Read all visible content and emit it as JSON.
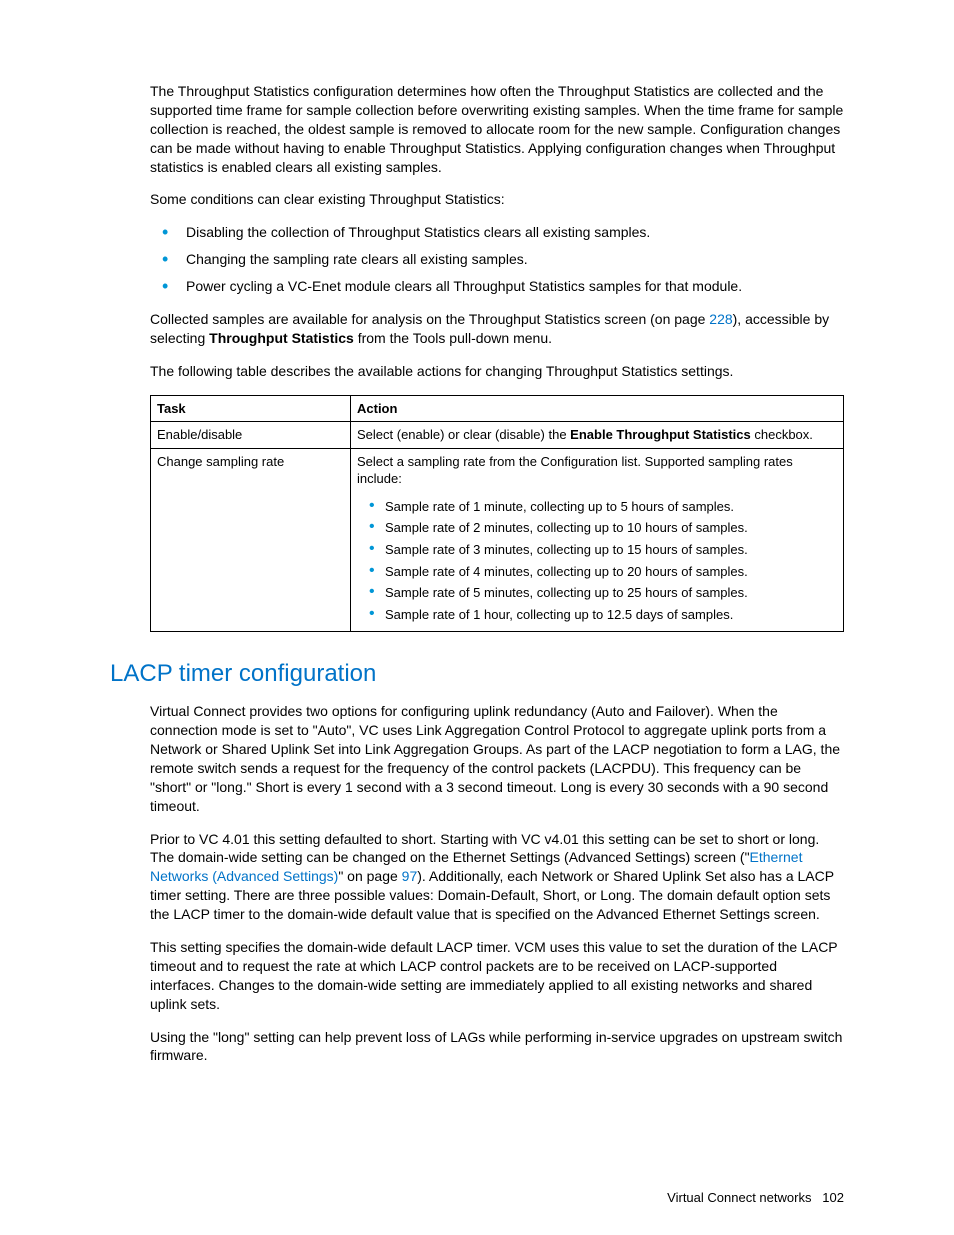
{
  "intro_para": {
    "p1_before_link": "The Throughput Statistics configuration determines how often the Throughput Statistics are collected and the supported time frame for sample collection before overwriting existing samples. When the time frame for sample collection is reached, the oldest sample is removed to allocate room for the new sample. Configuration changes can be made without having to enable Throughput Statistics. Applying configuration changes when Throughput statistics is enabled clears all existing samples.",
    "p2": "Some conditions can clear existing Throughput Statistics:"
  },
  "conditions": [
    "Disabling the collection of Throughput Statistics clears all existing samples.",
    "Changing the sampling rate clears all existing samples.",
    "Power cycling a VC-Enet module clears all Throughput Statistics samples for that module."
  ],
  "collected_para": {
    "before_link": "Collected samples are available for analysis on the Throughput Statistics screen (on page ",
    "link": "228",
    "after_link": "), accessible by selecting ",
    "bold": "Throughput Statistics",
    "after_bold": " from the Tools pull-down menu."
  },
  "table_intro": "The following table describes the available actions for changing Throughput Statistics settings.",
  "table": {
    "headers": {
      "task": "Task",
      "action": "Action"
    },
    "row1": {
      "task": "Enable/disable",
      "before_bold": "Select (enable) or clear (disable) the ",
      "bold": "Enable Throughput Statistics",
      "after_bold": " checkbox."
    },
    "row2": {
      "task": "Change sampling rate",
      "intro": "Select a sampling rate from the Configuration list. Supported sampling rates include:",
      "items": [
        "Sample rate of 1 minute, collecting up to 5 hours of samples.",
        "Sample rate of 2 minutes, collecting up to 10 hours of samples.",
        "Sample rate of 3 minutes, collecting up to 15 hours of samples.",
        "Sample rate of 4 minutes, collecting up to 20 hours of samples.",
        "Sample rate of 5 minutes, collecting up to 25 hours of samples.",
        "Sample rate of 1 hour, collecting up to 12.5 days of samples."
      ]
    }
  },
  "section_heading": "LACP timer configuration",
  "lacp": {
    "p1": "Virtual Connect provides two options for configuring uplink redundancy (Auto and Failover). When the connection mode is set to \"Auto\", VC uses Link Aggregation Control Protocol to aggregate uplink ports from a Network or Shared Uplink Set into Link Aggregation Groups. As part of the LACP negotiation to form a LAG, the remote switch sends a request for the frequency of the control packets (LACPDU). This frequency can be \"short\" or \"long.\" Short is every 1 second with a 3 second timeout. Long is every 30 seconds with a 90 second timeout.",
    "p2_before_link": "Prior to VC 4.01 this setting defaulted to short. Starting with VC v4.01 this setting can be set to short or long. The domain-wide setting can be changed on the Ethernet Settings (Advanced Settings) screen (\"",
    "p2_link": "Ethernet Networks (Advanced Settings)",
    "p2_mid": "\" on page ",
    "p2_page": "97",
    "p2_after": "). Additionally, each Network or Shared Uplink Set also has a LACP timer setting. There are three possible values: Domain-Default, Short, or Long. The domain default option sets the LACP timer to the domain-wide default value that is specified on the Advanced Ethernet Settings screen.",
    "p3": "This setting specifies the domain-wide default LACP timer. VCM uses this value to set the duration of the LACP timeout and to request the rate at which LACP control packets are to be received on LACP-supported interfaces. Changes to the domain-wide setting are immediately applied to all existing networks and shared uplink sets.",
    "p4": "Using the \"long\" setting can help prevent loss of LAGs while performing in-service upgrades on upstream switch firmware."
  },
  "footer": {
    "text": "Virtual Connect networks",
    "page": "102"
  }
}
